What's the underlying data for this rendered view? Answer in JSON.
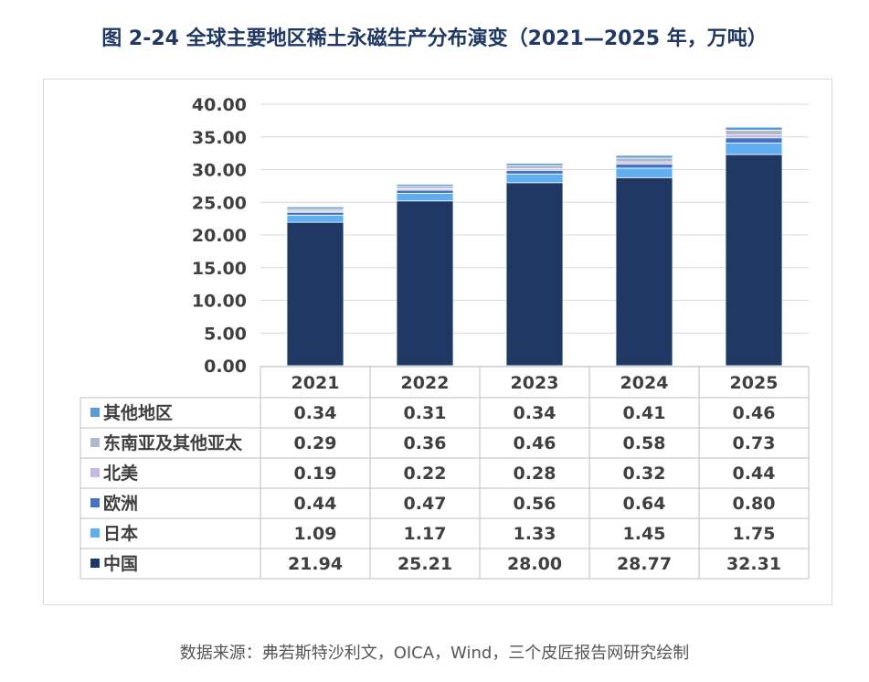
{
  "header": {
    "title": "图 2-24 全球主要地区稀土永磁生产分布演变（2021—2025 年，万吨）"
  },
  "footer": {
    "source": "数据来源：弗若斯特沙利文，OICA，Wind，三个皮匠报告网研究绘制"
  },
  "chart_data": {
    "type": "bar",
    "stacked": true,
    "title": "图 2-24 全球主要地区稀土永磁生产分布演变（2021—2025 年，万吨）",
    "categories": [
      "2021",
      "2022",
      "2023",
      "2024",
      "2025"
    ],
    "ylim": [
      0,
      40
    ],
    "yticks": [
      "40.00",
      "35.00",
      "30.00",
      "25.00",
      "20.00",
      "15.00",
      "10.00",
      "5.00",
      "0.00"
    ],
    "grid": true,
    "legend_placement": "table-left",
    "series": [
      {
        "name": "中国",
        "color": "#1f3864",
        "values": [
          21.94,
          25.21,
          28.0,
          28.77,
          32.31
        ],
        "labels": [
          "21.94",
          "25.21",
          "28.00",
          "28.77",
          "32.31"
        ]
      },
      {
        "name": "日本",
        "color": "#5eaef0",
        "values": [
          1.09,
          1.17,
          1.33,
          1.45,
          1.75
        ],
        "labels": [
          "1.09",
          "1.17",
          "1.33",
          "1.45",
          "1.75"
        ]
      },
      {
        "name": "欧洲",
        "color": "#4472c4",
        "values": [
          0.44,
          0.47,
          0.56,
          0.64,
          0.8
        ],
        "labels": [
          "0.44",
          "0.47",
          "0.56",
          "0.64",
          "0.80"
        ]
      },
      {
        "name": "北美",
        "color": "#c5b8e6",
        "values": [
          0.19,
          0.22,
          0.28,
          0.32,
          0.44
        ],
        "labels": [
          "0.19",
          "0.22",
          "0.28",
          "0.32",
          "0.44"
        ]
      },
      {
        "name": "东南亚及其他亚太",
        "color": "#adb9ca",
        "values": [
          0.29,
          0.36,
          0.46,
          0.58,
          0.73
        ],
        "labels": [
          "0.29",
          "0.36",
          "0.46",
          "0.58",
          "0.73"
        ]
      },
      {
        "name": "其他地区",
        "color": "#5b9bd5",
        "values": [
          0.34,
          0.31,
          0.34,
          0.41,
          0.46
        ],
        "labels": [
          "0.34",
          "0.31",
          "0.34",
          "0.41",
          "0.46"
        ]
      }
    ]
  }
}
